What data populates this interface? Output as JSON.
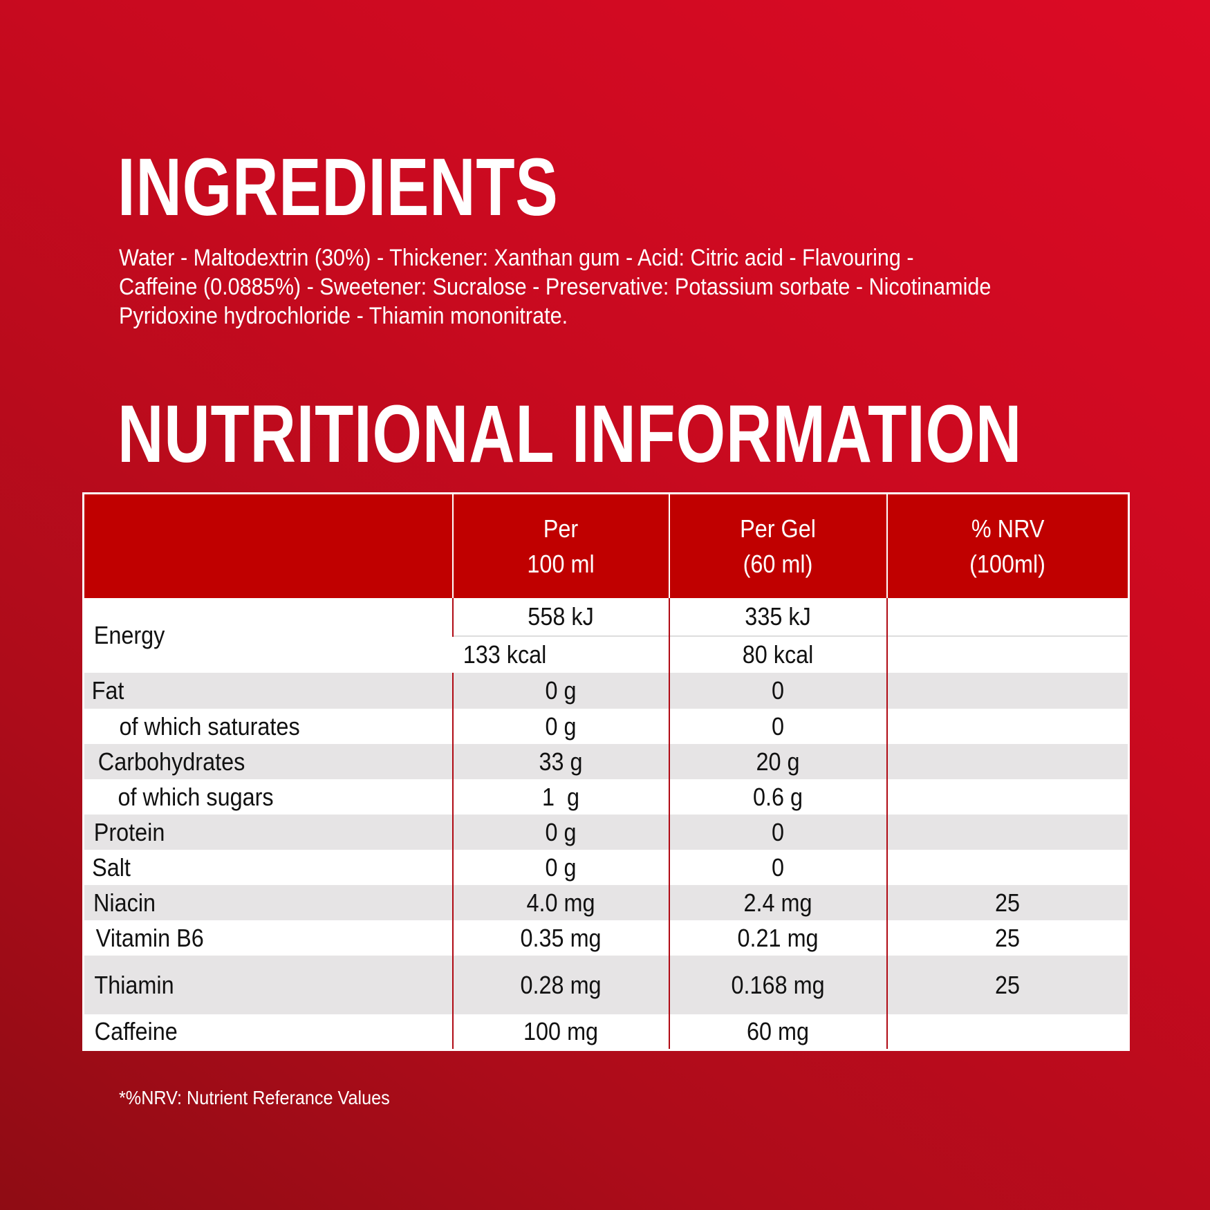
{
  "ingredients": {
    "title": "INGREDIENTS",
    "lines": [
      "Water - Maltodextrin (30%) - Thickener: Xanthan gum - Acid: Citric acid - Flavouring -",
      "Caffeine (0.0885%) - Sweetener: Sucralose - Preservative: Potassium sorbate - Nicotinamide",
      "Pyridoxine hydrochloride - Thiamin mononitrate."
    ]
  },
  "nutrition": {
    "title": "NUTRITIONAL INFORMATION",
    "headers": [
      {
        "l1": "",
        "l2": ""
      },
      {
        "l1": "Per",
        "l2": "100 ml"
      },
      {
        "l1": "Per Gel",
        "l2": "(60 ml)"
      },
      {
        "l1": "% NRV",
        "l2": "(100ml)"
      }
    ],
    "energy": {
      "label": "Energy",
      "per100_kj": "558 kJ",
      "per100_kcal": "133 kcal",
      "gel_kj": "335 kJ",
      "gel_kcal": "80 kcal"
    },
    "rows": [
      {
        "label": "Fat",
        "per100": "0 g",
        "gel": "0",
        "nrv": ""
      },
      {
        "label": "of which saturates",
        "per100": "0 g",
        "gel": "0",
        "nrv": ""
      },
      {
        "label": "Carbohydrates",
        "per100": "33 g",
        "gel": "20 g",
        "nrv": ""
      },
      {
        "label": "of which sugars",
        "per100": "1  g",
        "gel": "0.6 g",
        "nrv": ""
      },
      {
        "label": "Protein",
        "per100": "0 g",
        "gel": "0",
        "nrv": ""
      },
      {
        "label": "Salt",
        "per100": "0 g",
        "gel": "0",
        "nrv": ""
      },
      {
        "label": "Niacin",
        "per100": "4.0 mg",
        "gel": "2.4 mg",
        "nrv": "25"
      },
      {
        "label": "Vitamin B6",
        "per100": "0.35 mg",
        "gel": "0.21 mg",
        "nrv": "25"
      },
      {
        "label": "Thiamin",
        "per100": "0.28 mg",
        "gel": "0.168 mg",
        "nrv": "25"
      },
      {
        "label": "Caffeine",
        "per100": "100 mg",
        "gel": "60 mg",
        "nrv": ""
      }
    ]
  },
  "footnote": "*%NRV: Nutrient Referance Values",
  "colors": {
    "header": "#c00000",
    "stripe": "#e6e4e5",
    "background_light": "#dc0a25",
    "background_dark": "#8f0c14"
  }
}
